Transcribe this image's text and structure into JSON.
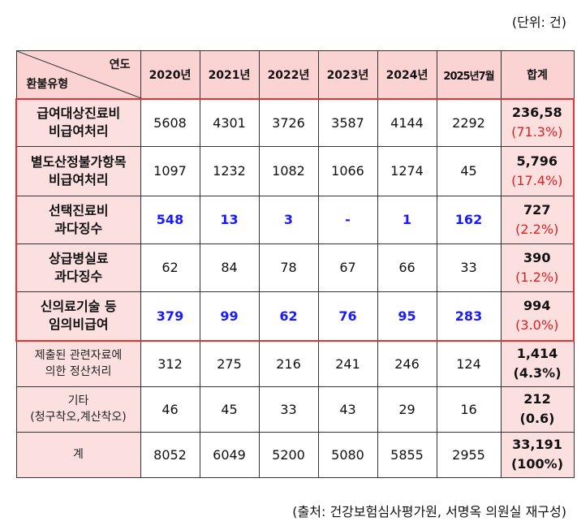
{
  "unit": "(단위: 건)",
  "source": "(출처: 건강보험심사평가원, 서명옥 의원실 재구성)",
  "header": {
    "corner_top": "연도",
    "corner_bottom": "환불유형",
    "years": [
      "2020년",
      "2021년",
      "2022년",
      "2023년",
      "2024년",
      "2025년7월"
    ],
    "total": "합계"
  },
  "rows": [
    {
      "label1": "급여대상진료비",
      "label2": "비급여처리",
      "values": [
        "5608",
        "4301",
        "3726",
        "3587",
        "4144",
        "2292"
      ],
      "total": "236,58",
      "pct": "(71.3%)"
    },
    {
      "label1": "별도산정불가항목",
      "label2": "비급여처리",
      "values": [
        "1097",
        "1232",
        "1082",
        "1066",
        "1274",
        "45"
      ],
      "total": "5,796",
      "pct": "(17.4%)"
    },
    {
      "label1": "선택진료비",
      "label2": "과다징수",
      "values": [
        "548",
        "13",
        "3",
        "-",
        "1",
        "162"
      ],
      "total": "727",
      "pct": "(2.2%)"
    },
    {
      "label1": "상급병실료",
      "label2": "과다징수",
      "values": [
        "62",
        "84",
        "78",
        "67",
        "66",
        "33"
      ],
      "total": "390",
      "pct": "(1.2%)"
    },
    {
      "label1": "신의료기술 등",
      "label2": "임의비급여",
      "values": [
        "379",
        "99",
        "62",
        "76",
        "95",
        "283"
      ],
      "total": "994",
      "pct": "(3.0%)"
    },
    {
      "label1": "제출된 관련자료에",
      "label2": "의한 정산처리",
      "values": [
        "312",
        "275",
        "216",
        "241",
        "246",
        "124"
      ],
      "total": "1,414",
      "pct": "(4.3%)"
    },
    {
      "label1": "기타",
      "label2": "(청구착오,계산착오)",
      "values": [
        "46",
        "45",
        "33",
        "43",
        "29",
        "16"
      ],
      "total": "212",
      "pct": "(0.6)"
    },
    {
      "label1": "계",
      "label2": "",
      "values": [
        "8052",
        "6049",
        "5200",
        "5080",
        "5855",
        "2955"
      ],
      "total": "33,191",
      "pct": "(100%)"
    }
  ],
  "colors": {
    "header_bg": "#fbd3d3",
    "label_bg": "#fce0e0",
    "highlight_border": "#e53333",
    "blue_values": "#1a1aff",
    "red_pct": "#e02020"
  }
}
